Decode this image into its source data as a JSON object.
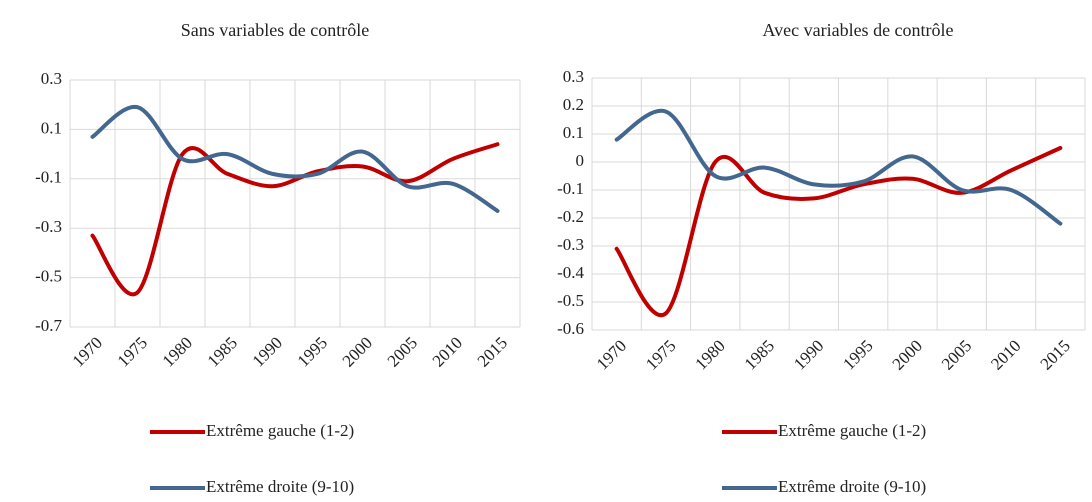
{
  "chart_data": [
    {
      "type": "line",
      "title": "Sans variables de contrôle",
      "categories": [
        "1970",
        "1975",
        "1980",
        "1985",
        "1990",
        "1995",
        "2000",
        "2005",
        "2010",
        "2015"
      ],
      "series": [
        {
          "name": "Extrême gauche (1-2)",
          "color": "#c00000",
          "values": [
            -0.33,
            -0.56,
            0.0,
            -0.08,
            -0.13,
            -0.07,
            -0.05,
            -0.11,
            -0.02,
            0.04
          ]
        },
        {
          "name": "Extrême droite (9-10)",
          "color": "#44678f",
          "values": [
            0.07,
            0.19,
            -0.02,
            0.0,
            -0.08,
            -0.08,
            0.01,
            -0.13,
            -0.12,
            -0.23
          ]
        }
      ],
      "ylim": [
        -0.7,
        0.3
      ],
      "yticks": [
        -0.7,
        -0.5,
        -0.3,
        -0.1,
        0.1,
        0.3
      ],
      "grid": true
    },
    {
      "type": "line",
      "title": "Avec variables de contrôle",
      "categories": [
        "1970",
        "1975",
        "1980",
        "1985",
        "1990",
        "1995",
        "2000",
        "2005",
        "2010",
        "2015"
      ],
      "series": [
        {
          "name": "Extrême gauche (1-2)",
          "color": "#c00000",
          "values": [
            -0.31,
            -0.54,
            0.0,
            -0.11,
            -0.13,
            -0.08,
            -0.06,
            -0.11,
            -0.03,
            0.05
          ]
        },
        {
          "name": "Extrême droite (9-10)",
          "color": "#44678f",
          "values": [
            0.08,
            0.18,
            -0.05,
            -0.02,
            -0.08,
            -0.07,
            0.02,
            -0.1,
            -0.1,
            -0.22
          ]
        }
      ],
      "ylim": [
        -0.6,
        0.3
      ],
      "yticks": [
        -0.6,
        -0.5,
        -0.4,
        -0.3,
        -0.2,
        -0.1,
        0,
        0.1,
        0.2,
        0.3
      ],
      "grid": true
    }
  ]
}
